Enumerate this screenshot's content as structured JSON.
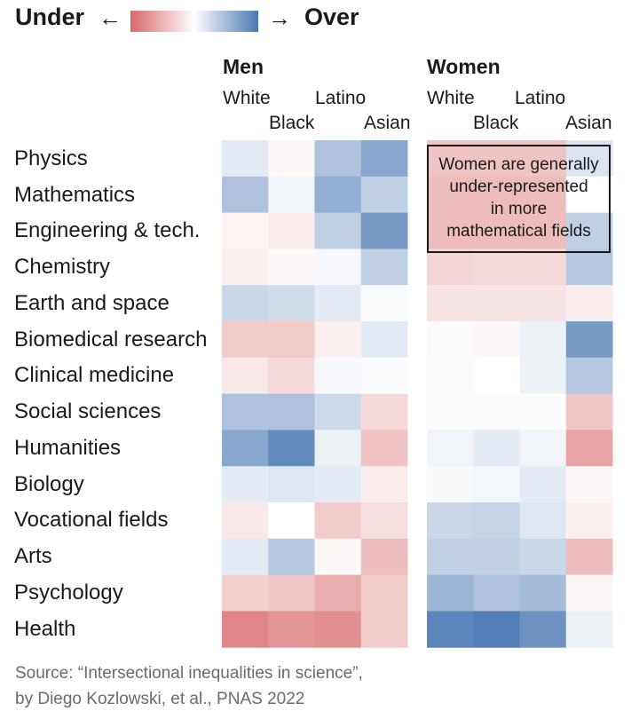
{
  "legend": {
    "under_label": "Under",
    "over_label": "Over",
    "arrow_left": "←",
    "arrow_right": "→",
    "under_color": "#d9696b",
    "over_color": "#4a78b3"
  },
  "chart_data": {
    "type": "heatmap",
    "groups": [
      "Men",
      "Women"
    ],
    "columns": [
      "White",
      "Black",
      "Latino",
      "Asian"
    ],
    "rows": [
      "Physics",
      "Mathematics",
      "Engineering & tech.",
      "Chemistry",
      "Earth and space",
      "Biomedical research",
      "Clinical medicine",
      "Social sciences",
      "Humanities",
      "Biology",
      "Vocational fields",
      "Arts",
      "Psychology",
      "Health"
    ],
    "scale": "diverging: negative = under-represented (red), positive = over-represented (blue)",
    "values": {
      "Men": [
        [
          0.15,
          -0.05,
          0.45,
          0.65
        ],
        [
          0.45,
          0.08,
          0.6,
          0.35
        ],
        [
          -0.08,
          -0.12,
          0.35,
          0.75
        ],
        [
          -0.1,
          -0.05,
          0.05,
          0.35
        ],
        [
          0.3,
          0.25,
          0.15,
          0.03
        ],
        [
          -0.35,
          -0.35,
          -0.1,
          0.15
        ],
        [
          -0.15,
          -0.25,
          0.05,
          0.02
        ],
        [
          0.45,
          0.45,
          0.28,
          -0.25
        ],
        [
          0.65,
          0.85,
          0.1,
          -0.4
        ],
        [
          0.15,
          0.18,
          0.15,
          -0.12
        ],
        [
          -0.15,
          0.0,
          -0.35,
          -0.22
        ],
        [
          0.15,
          0.4,
          -0.05,
          -0.45
        ],
        [
          -0.32,
          -0.38,
          -0.55,
          -0.35
        ],
        [
          -0.8,
          -0.7,
          -0.75,
          -0.35
        ]
      ],
      "Women": [
        [
          -0.4,
          -0.4,
          -0.4,
          0.2
        ],
        [
          -0.45,
          -0.45,
          -0.45,
          0.0
        ],
        [
          -0.45,
          -0.45,
          -0.45,
          0.35
        ],
        [
          -0.28,
          -0.25,
          -0.25,
          0.4
        ],
        [
          -0.18,
          -0.18,
          -0.18,
          -0.12
        ],
        [
          -0.03,
          -0.05,
          0.1,
          0.75
        ],
        [
          0.03,
          0.0,
          0.1,
          0.4
        ],
        [
          0.03,
          0.03,
          0.02,
          -0.38
        ],
        [
          0.08,
          0.15,
          0.08,
          -0.6
        ],
        [
          0.04,
          0.06,
          0.15,
          -0.06
        ],
        [
          0.3,
          0.32,
          0.18,
          -0.1
        ],
        [
          0.35,
          0.35,
          0.3,
          -0.45
        ],
        [
          0.55,
          0.45,
          0.5,
          -0.06
        ],
        [
          0.9,
          0.95,
          0.8,
          0.1
        ]
      ]
    },
    "annotation": {
      "group": "Women",
      "lines": [
        "Women are generally",
        "under-represented",
        "in more",
        "mathematical fields"
      ]
    }
  },
  "source": {
    "line1": "Source: “Intersectional inequalities in science”,",
    "line2": "by Diego Kozlowski, et al., PNAS 2022"
  }
}
